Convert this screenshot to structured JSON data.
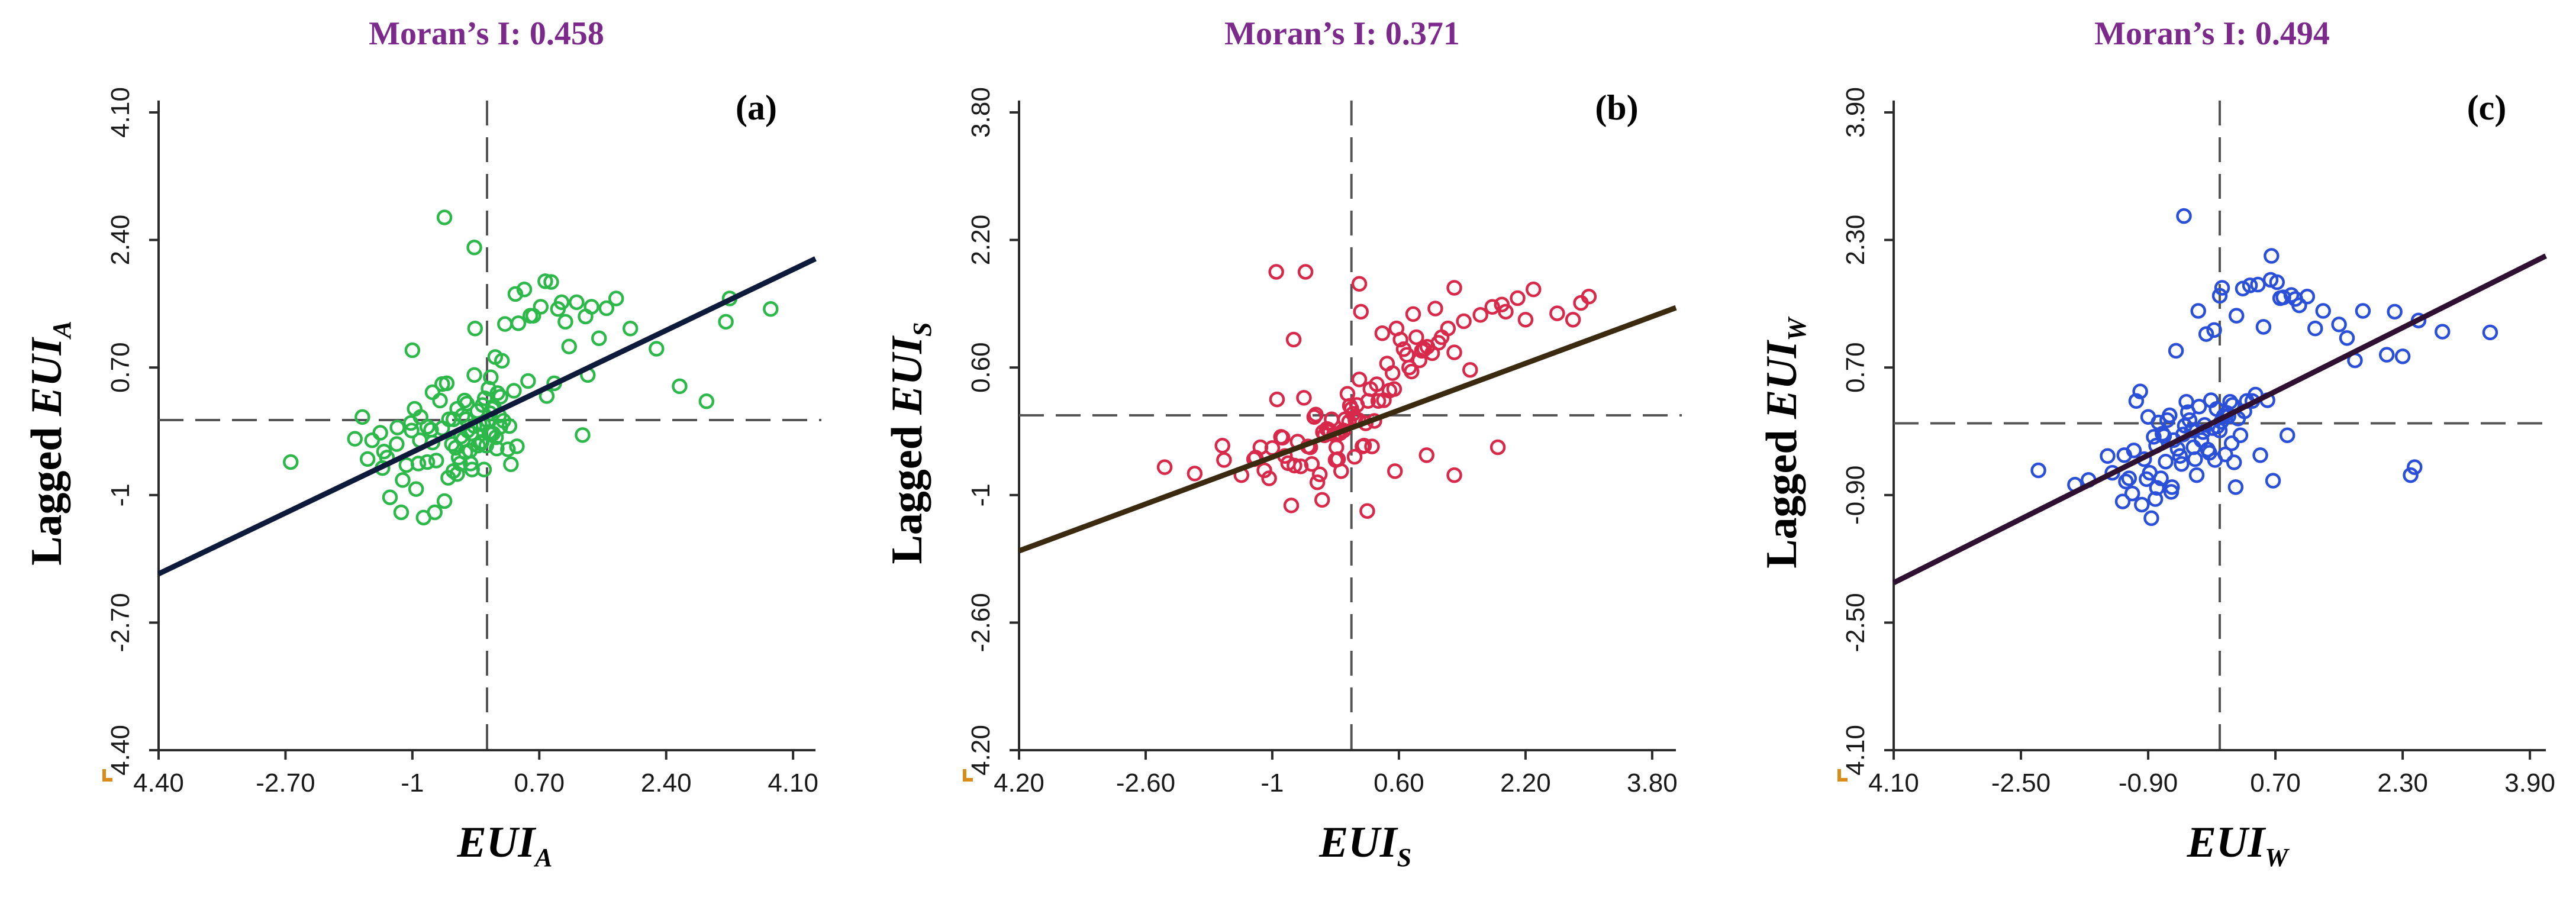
{
  "colors": {
    "title": "#7b2a8b",
    "axis": "#2b2b2b",
    "dash": "#555555",
    "corner_marker": "#d98c1a"
  },
  "chart_data": [
    {
      "type": "scatter",
      "panel_label": "(a)",
      "title": "Moran’s I: 0.458",
      "xlabel_main": "EUI",
      "xlabel_sub": "A",
      "ylabel_prefix": "Lagged ",
      "ylabel_main": "EUI",
      "ylabel_sub": "A",
      "xlim": [
        -4.4,
        4.4
      ],
      "ylim": [
        -4.4,
        4.1
      ],
      "x_ticks": [
        -4.4,
        -2.7,
        -1,
        0.7,
        2.4,
        4.1
      ],
      "x_tick_labels": [
        "4.40",
        "-2.70",
        "-1",
        "0.70",
        "2.40",
        "4.10"
      ],
      "y_ticks": [
        -4.4,
        -2.7,
        -1,
        0.7,
        2.4,
        4.1
      ],
      "y_tick_labels": [
        "4.40",
        "-2.70",
        "-1",
        "0.70",
        "2.40",
        "4.10"
      ],
      "point_color": "#2db84a",
      "line_color": "#0d1a3a",
      "fit_line": {
        "x": [
          -4.4,
          4.4
        ],
        "y": [
          -2.05,
          2.15
        ]
      },
      "x_points": [
        -2.63,
        -1.77,
        -1.67,
        -1.6,
        -1.54,
        -1.43,
        -1.4,
        -1.38,
        -1.34,
        -1.3,
        -1.21,
        -1.2,
        -1.15,
        -1.13,
        -1.08,
        -1.02,
        -1.01,
        -1.0,
        -0.97,
        -0.95,
        -0.92,
        -0.9,
        -0.89,
        -0.85,
        -0.8,
        -0.8,
        -0.75,
        -0.73,
        -0.73,
        -0.7,
        -0.68,
        -0.63,
        -0.6,
        -0.6,
        -0.57,
        -0.54,
        -0.52,
        -0.51,
        -0.47,
        -0.45,
        -0.45,
        -0.42,
        -0.4,
        -0.4,
        -0.38,
        -0.36,
        -0.35,
        -0.33,
        -0.32,
        -0.3,
        -0.29,
        -0.28,
        -0.27,
        -0.26,
        -0.23,
        -0.22,
        -0.21,
        -0.2,
        -0.17,
        -0.17,
        -0.16,
        -0.13,
        -0.12,
        -0.1,
        -0.08,
        -0.07,
        -0.06,
        -0.05,
        -0.04,
        -0.03,
        -0.01,
        0.01,
        0.02,
        0.03,
        0.04,
        0.05,
        0.05,
        0.07,
        0.08,
        0.09,
        0.11,
        0.12,
        0.13,
        0.14,
        0.16,
        0.18,
        0.18,
        0.2,
        0.22,
        0.24,
        0.28,
        0.3,
        0.32,
        0.36,
        0.38,
        0.4,
        0.42,
        0.5,
        0.55,
        0.58,
        0.62,
        0.72,
        0.78,
        0.8,
        0.86,
        0.9,
        0.95,
        1.0,
        1.05,
        1.1,
        1.2,
        1.28,
        1.32,
        1.35,
        1.4,
        1.5,
        1.6,
        1.73,
        1.92,
        2.27,
        2.58,
        2.94,
        3.2,
        3.25,
        3.8
      ],
      "y_points": [
        -0.56,
        -0.25,
        0.04,
        -0.52,
        -0.27,
        -0.17,
        -0.64,
        -0.42,
        -0.5,
        -1.03,
        -0.32,
        -0.1,
        -1.23,
        -0.8,
        -0.6,
        -0.04,
        -0.14,
        0.93,
        0.15,
        -0.92,
        -0.58,
        -0.27,
        0.04,
        -1.3,
        -0.09,
        -0.56,
        -0.13,
        -0.3,
        0.37,
        -1.23,
        -0.54,
        0.26,
        0.48,
        -0.11,
        -1.08,
        0.49,
        -0.77,
        0.01,
        -0.32,
        0.01,
        -0.68,
        -0.37,
        -0.72,
        0.15,
        -0.5,
        -0.58,
        -0.22,
        0.06,
        -0.26,
        0.26,
        -0.43,
        0.01,
        0.22,
        -0.14,
        -0.41,
        -0.58,
        -0.18,
        -0.66,
        0.6,
        -0.08,
        1.22,
        0.12,
        -0.34,
        -0.05,
        -0.31,
        -0.29,
        0.2,
        -0.06,
        -0.66,
        0.29,
        -0.34,
        -0.01,
        0.42,
        -0.16,
        0.09,
        -0.19,
        0.57,
        0.15,
        -0.18,
        0.18,
        0.84,
        -0.23,
        -0.38,
        0.36,
        0.06,
        -0.09,
        0.31,
        0.79,
        -0.01,
        1.28,
        -0.39,
        -0.08,
        -0.59,
        0.39,
        1.68,
        -0.35,
        1.29,
        1.74,
        0.52,
        1.39,
        1.39,
        1.51,
        1.85,
        0.32,
        1.84,
        0.49,
        1.48,
        1.57,
        1.31,
        0.98,
        1.57,
        -0.2,
        1.38,
        0.6,
        1.51,
        1.09,
        1.49,
        1.62,
        1.22,
        0.95,
        0.45,
        0.25,
        1.31,
        1.62,
        1.48
      ],
      "outliers": [
        [
          -0.57,
          2.7
        ],
        [
          -0.17,
          2.3
        ]
      ]
    },
    {
      "type": "scatter",
      "panel_label": "(b)",
      "title": "Moran’s I: 0.371",
      "xlabel_main": "EUI",
      "xlabel_sub": "S",
      "ylabel_prefix": "Lagged ",
      "ylabel_main": "EUI",
      "ylabel_sub": "S",
      "xlim": [
        -4.2,
        4.1
      ],
      "ylim": [
        -4.2,
        3.8
      ],
      "x_ticks": [
        -4.2,
        -2.6,
        -1,
        0.6,
        2.2,
        3.8
      ],
      "x_tick_labels": [
        "4.20",
        "-2.60",
        "-1",
        "0.60",
        "2.20",
        "3.80"
      ],
      "y_ticks": [
        -4.2,
        -2.6,
        -1,
        0.6,
        2.2,
        3.8
      ],
      "y_tick_labels": [
        "4.20",
        "-2.60",
        "-1",
        "0.60",
        "2.20",
        "3.80"
      ],
      "point_color": "#d8294a",
      "line_color": "#3a2a10",
      "fit_line": {
        "x": [
          -4.2,
          4.1
        ],
        "y": [
          -1.7,
          1.35
        ]
      },
      "x_points": [
        -2.36,
        -1.98,
        -1.63,
        -1.61,
        -1.39,
        -1.23,
        -1.21,
        -1.15,
        -1.1,
        -1.04,
        -1.0,
        -0.94,
        -0.89,
        -0.87,
        -0.84,
        -0.8,
        -0.76,
        -0.73,
        -0.72,
        -0.68,
        -0.64,
        -0.6,
        -0.58,
        -0.55,
        -0.52,
        -0.5,
        -0.47,
        -0.45,
        -0.43,
        -0.4,
        -0.37,
        -0.36,
        -0.34,
        -0.31,
        -0.29,
        -0.27,
        -0.25,
        -0.22,
        -0.2,
        -0.19,
        -0.18,
        -0.17,
        -0.16,
        -0.14,
        -0.13,
        -0.1,
        -0.08,
        -0.05,
        -0.03,
        -0.02,
        0.0,
        0.02,
        0.04,
        0.05,
        0.07,
        0.09,
        0.1,
        0.12,
        0.14,
        0.16,
        0.18,
        0.21,
        0.24,
        0.26,
        0.29,
        0.32,
        0.34,
        0.39,
        0.41,
        0.45,
        0.48,
        0.52,
        0.54,
        0.57,
        0.62,
        0.66,
        0.7,
        0.73,
        0.76,
        0.78,
        0.82,
        0.86,
        0.89,
        0.92,
        0.96,
        1.02,
        1.06,
        1.1,
        1.14,
        1.22,
        1.3,
        1.42,
        1.5,
        1.63,
        1.78,
        1.9,
        2.1,
        2.2,
        2.3,
        2.6,
        2.9,
        3.0
      ],
      "y_points": [
        -0.65,
        -0.73,
        -0.38,
        -0.56,
        -0.75,
        -0.55,
        -0.53,
        -0.4,
        -0.69,
        -0.79,
        -0.41,
        0.2,
        -0.27,
        -0.28,
        -0.51,
        -0.6,
        -1.13,
        0.95,
        -0.63,
        -0.33,
        -0.64,
        0.22,
        1.8,
        -0.39,
        -0.4,
        -0.61,
        -0.02,
        0.01,
        -0.84,
        -0.74,
        -1.06,
        -0.21,
        -0.25,
        -0.17,
        -0.18,
        -0.2,
        -0.05,
        -0.24,
        -0.56,
        -0.4,
        -0.24,
        -0.55,
        -0.23,
        -0.22,
        -0.7,
        -0.19,
        -0.05,
        0.27,
        -0.08,
        0.12,
        0.08,
        0.02,
        -0.52,
        -0.06,
        0.13,
        -0.06,
        0.45,
        1.3,
        -0.39,
        -0.38,
        -0.1,
        0.18,
        0.33,
        -0.39,
        -0.07,
        0.39,
        0.18,
        1.03,
        0.19,
        0.65,
        0.31,
        0.53,
        0.33,
        1.09,
        0.95,
        0.83,
        0.76,
        0.6,
        0.55,
        1.27,
        0.98,
        0.69,
        0.81,
        0.83,
        0.86,
        0.78,
        1.34,
        0.91,
        0.98,
        1.09,
        0.79,
        1.18,
        0.57,
        1.26,
        1.36,
        1.39,
        1.47,
        1.2,
        1.58,
        1.28,
        1.41,
        1.49
      ],
      "extra_points": [
        [
          0.1,
          1.65
        ],
        [
          1.3,
          1.6
        ],
        [
          1.95,
          1.3
        ],
        [
          2.8,
          1.2
        ],
        [
          -0.95,
          1.8
        ],
        [
          0.55,
          -0.7
        ],
        [
          0.95,
          -0.5
        ],
        [
          1.3,
          -0.75
        ],
        [
          1.85,
          -0.4
        ],
        [
          0.2,
          -1.2
        ]
      ]
    },
    {
      "type": "scatter",
      "panel_label": "(c)",
      "title": "Moran’s I: 0.494",
      "xlabel_main": "EUI",
      "xlabel_sub": "W",
      "ylabel_prefix": "Lagged ",
      "ylabel_main": "EUI",
      "ylabel_sub": "W",
      "xlim": [
        -4.1,
        4.1
      ],
      "ylim": [
        -4.1,
        3.9
      ],
      "x_ticks": [
        -4.1,
        -2.5,
        -0.9,
        0.7,
        2.3,
        3.9
      ],
      "x_tick_labels": [
        "4.10",
        "-2.50",
        "-0.90",
        "0.70",
        "2.30",
        "3.90"
      ],
      "y_ticks": [
        -4.1,
        -2.5,
        -0.9,
        0.7,
        2.3,
        3.9
      ],
      "y_tick_labels": [
        "4.10",
        "-2.50",
        "-0.90",
        "0.70",
        "2.30",
        "3.90"
      ],
      "point_color": "#2a4fd8",
      "line_color": "#2e1030",
      "fit_line": {
        "x": [
          -4.1,
          4.1
        ],
        "y": [
          -2.0,
          2.1
        ]
      },
      "x_points": [
        -2.28,
        -1.82,
        -1.65,
        -1.41,
        -1.35,
        -1.22,
        -1.2,
        -1.18,
        -1.14,
        -1.1,
        -1.08,
        -1.05,
        -1.0,
        -0.98,
        -0.95,
        -0.92,
        -0.9,
        -0.88,
        -0.86,
        -0.83,
        -0.81,
        -0.8,
        -0.79,
        -0.77,
        -0.74,
        -0.72,
        -0.7,
        -0.68,
        -0.66,
        -0.63,
        -0.61,
        -0.6,
        -0.58,
        -0.55,
        -0.53,
        -0.5,
        -0.48,
        -0.46,
        -0.44,
        -0.42,
        -0.4,
        -0.38,
        -0.35,
        -0.33,
        -0.31,
        -0.29,
        -0.27,
        -0.26,
        -0.23,
        -0.21,
        -0.19,
        -0.17,
        -0.15,
        -0.13,
        -0.11,
        -0.09,
        -0.07,
        -0.06,
        -0.04,
        -0.03,
        0.0,
        0.02,
        0.03,
        0.05,
        0.07,
        0.09,
        0.11,
        0.13,
        0.16,
        0.18,
        0.21,
        0.23,
        0.26,
        0.29,
        0.31,
        0.34,
        0.38,
        0.41,
        0.45,
        0.48,
        0.51,
        0.55,
        0.6,
        0.64,
        0.67,
        0.72,
        0.76,
        0.8,
        0.85,
        0.9,
        0.95,
        1.0,
        1.1,
        1.2,
        1.3,
        1.5,
        1.6,
        1.7,
        1.8,
        2.1,
        2.2,
        2.3,
        2.5,
        2.8,
        3.4
      ],
      "y_points": [
        -0.59,
        -0.77,
        -0.71,
        -0.41,
        -0.62,
        -0.98,
        -0.4,
        -0.73,
        -0.69,
        -0.88,
        -0.34,
        0.28,
        0.4,
        -1.02,
        -0.45,
        -0.7,
        0.08,
        -0.62,
        -1.19,
        -0.17,
        -0.95,
        -0.28,
        -0.81,
        0.01,
        -0.69,
        -0.13,
        -0.16,
        -0.48,
        0.04,
        0.1,
        -0.86,
        -0.8,
        -0.21,
        0.91,
        -0.32,
        -0.41,
        -0.51,
        -0.14,
        -0.03,
        0.27,
        0.14,
        0.04,
        -0.09,
        -0.3,
        -0.45,
        -0.65,
        1.41,
        0.21,
        -0.21,
        -0.11,
        -0.02,
        1.12,
        -0.33,
        -0.37,
        0.29,
        -0.06,
        1.17,
        -0.46,
        0.18,
        -0.04,
        -0.09,
        0.02,
        1.7,
        0.09,
        -0.39,
        0.13,
        0.09,
        0.27,
        0.23,
        -0.49,
        1.35,
        0.06,
        -0.15,
        1.69,
        0.15,
        0.28,
        1.73,
        0.28,
        0.36,
        1.74,
        -0.4,
        1.21,
        0.29,
        1.8,
        -0.72,
        1.77,
        1.57,
        1.58,
        -0.15,
        1.61,
        1.56,
        1.48,
        1.59,
        1.19,
        1.41,
        1.24,
        1.07,
        0.79,
        1.41,
        0.86,
        1.4,
        0.84,
        1.29,
        1.15,
        1.14
      ],
      "extra_points": [
        [
          -0.45,
          2.6
        ],
        [
          0.65,
          2.1
        ],
        [
          0.0,
          1.6
        ],
        [
          2.4,
          -0.65
        ],
        [
          2.45,
          -0.55
        ],
        [
          0.15,
          -0.25
        ],
        [
          0.2,
          -0.8
        ]
      ]
    }
  ]
}
